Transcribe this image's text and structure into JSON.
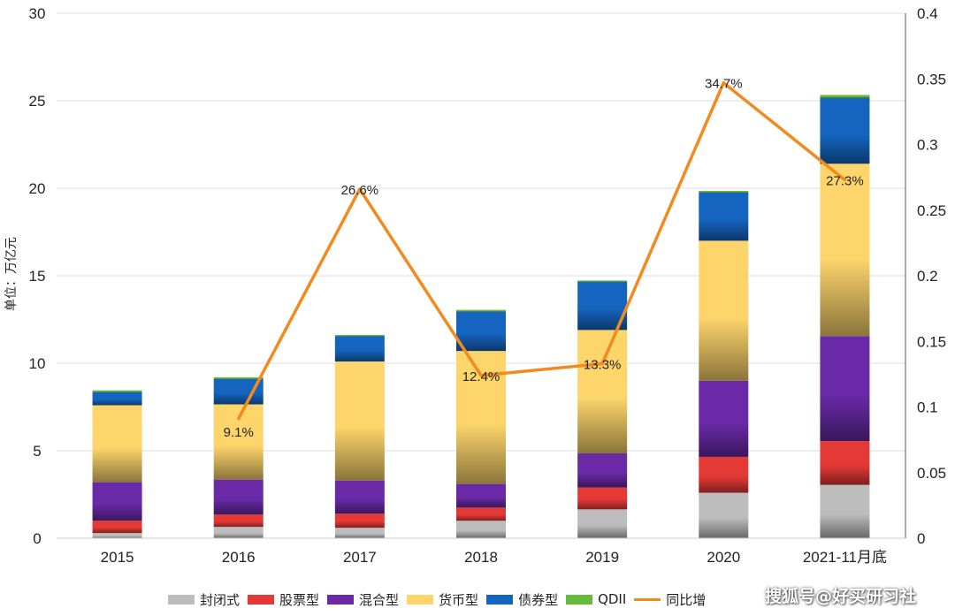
{
  "chart_data": {
    "type": "bar",
    "stacked": true,
    "title": "",
    "ylabel": "单位：万亿元",
    "ylim": [
      0,
      30
    ],
    "yticks": [
      0,
      5,
      10,
      15,
      20,
      25,
      30
    ],
    "y2lim": [
      0,
      0.4
    ],
    "y2ticks": [
      "0",
      "0.05",
      "0.1",
      "0.15",
      "0.2",
      "0.25",
      "0.3",
      "0.35",
      "0.4"
    ],
    "categories": [
      "2015",
      "2016",
      "2017",
      "2018",
      "2019",
      "2020",
      "2021-11月底"
    ],
    "series": [
      {
        "name": "封闭式",
        "color": "#bdbdbd",
        "values": [
          0.3,
          0.65,
          0.6,
          1.0,
          1.65,
          2.6,
          3.05
        ]
      },
      {
        "name": "股票型",
        "color": "#e53935",
        "values": [
          0.7,
          0.7,
          0.8,
          0.75,
          1.25,
          2.05,
          2.5
        ]
      },
      {
        "name": "混合型",
        "color": "#6a2aa8",
        "values": [
          2.2,
          2.0,
          1.9,
          1.35,
          1.95,
          4.35,
          6.0
        ]
      },
      {
        "name": "货币型",
        "color": "#fdd56b",
        "values": [
          4.4,
          4.3,
          6.8,
          7.6,
          7.05,
          8.0,
          9.85
        ]
      },
      {
        "name": "债券型",
        "color": "#1565c0",
        "values": [
          0.75,
          1.45,
          1.45,
          2.25,
          2.75,
          2.75,
          3.75
        ]
      },
      {
        "name": "QDII",
        "color": "#66bb3a",
        "values": [
          0.1,
          0.1,
          0.07,
          0.1,
          0.08,
          0.1,
          0.18
        ]
      }
    ],
    "line": {
      "name": "同比增长",
      "axis": "right",
      "color": "#f28a1e",
      "x_categories": [
        "2016",
        "2017",
        "2018",
        "2019",
        "2020",
        "2021-11月底"
      ],
      "values": [
        0.091,
        0.266,
        0.124,
        0.133,
        0.347,
        0.273
      ],
      "labels": [
        "9.1%",
        "26.6%",
        "12.4%",
        "13.3%",
        "34.7%",
        "27.3%"
      ]
    },
    "legend_position": "bottom"
  },
  "legend_line_label": "同比增",
  "watermark": "搜狐号@好买研习社"
}
